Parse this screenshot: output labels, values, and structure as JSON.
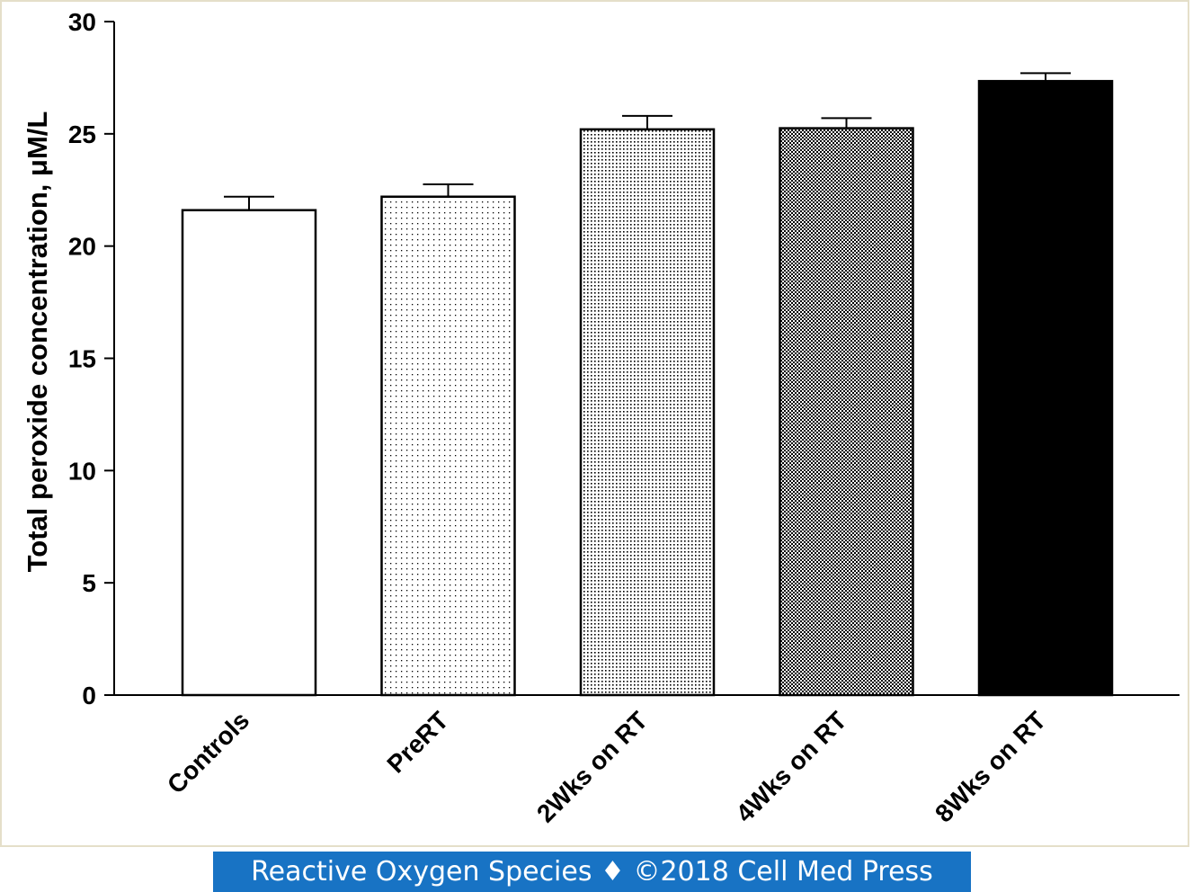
{
  "chart_data": {
    "type": "bar",
    "title": "",
    "xlabel": "",
    "ylabel": "Total peroxide concentration, μM/L",
    "categories": [
      "Controls",
      "PreRT",
      "2Wks on RT",
      "4Wks on RT",
      "8Wks on RT"
    ],
    "values": [
      21.6,
      22.2,
      25.2,
      25.25,
      27.35
    ],
    "error": [
      0.6,
      0.55,
      0.6,
      0.45,
      0.35
    ],
    "ylim": [
      0,
      30
    ],
    "yticks": [
      0,
      5,
      10,
      15,
      20,
      25,
      30
    ],
    "grid": false,
    "legend": "none",
    "bar_fills": [
      "white",
      "sparse-dots",
      "dense-dots",
      "checker",
      "solid-black"
    ]
  },
  "footer": {
    "text": "Reactive Oxygen Species ♦ ©2018 Cell Med Press",
    "bg_color": "#1873c4"
  }
}
